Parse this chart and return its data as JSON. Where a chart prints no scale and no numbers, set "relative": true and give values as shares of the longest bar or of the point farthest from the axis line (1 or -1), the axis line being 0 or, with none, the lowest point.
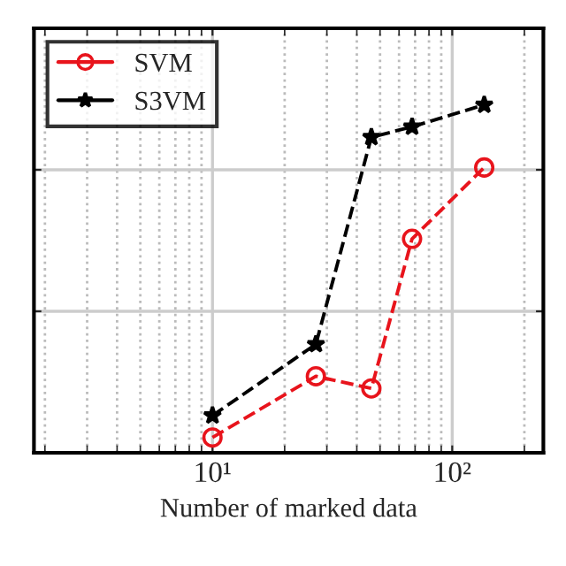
{
  "chart_data": {
    "type": "line",
    "xlabel": "Number of marked data",
    "log": "x",
    "xlim": [
      1.8,
      240
    ],
    "xticks": [
      {
        "value": 10,
        "label": "10¹"
      },
      {
        "value": 100,
        "label": "10²"
      }
    ],
    "relative": true,
    "grid": true,
    "legend": "upper left",
    "line_style": "dashed",
    "tick_labels": "x",
    "series": [
      {
        "name": "SVM",
        "color": "#e8141c",
        "marker": "circle",
        "x": [
          10,
          27,
          46,
          68,
          136
        ],
        "values": [
          0.044,
          0.22,
          0.185,
          0.615,
          0.82
        ]
      },
      {
        "name": "S3VM",
        "color": "#000000",
        "marker": "star",
        "x": [
          10,
          27,
          46,
          68,
          136
        ],
        "values": [
          0.107,
          0.312,
          0.907,
          0.937,
          1
        ]
      }
    ]
  }
}
